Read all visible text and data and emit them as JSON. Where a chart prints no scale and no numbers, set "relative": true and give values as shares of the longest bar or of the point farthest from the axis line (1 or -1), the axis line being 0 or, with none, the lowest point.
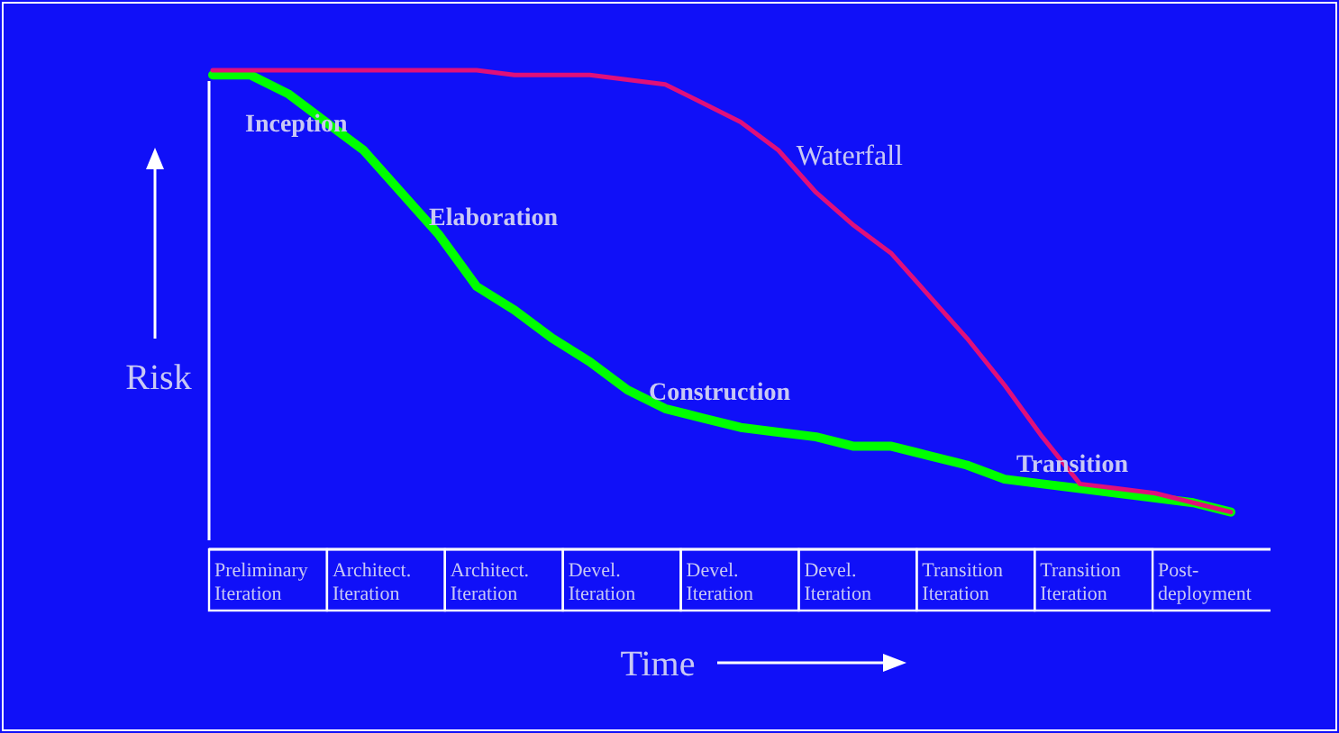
{
  "chart_data": {
    "type": "line",
    "relative": true,
    "xlabel": "Time",
    "ylabel": "Risk",
    "categories": [
      null,
      null,
      null,
      null,
      null,
      null,
      null,
      null,
      null,
      null,
      null,
      null,
      null,
      null,
      null,
      null,
      null,
      null,
      null,
      null,
      null,
      null,
      null,
      null,
      null,
      null,
      null,
      null
    ],
    "marker": "none",
    "line_style": "solid",
    "series": [
      {
        "color": "#00ff00",
        "values": [
          0.99,
          0.99,
          0.95,
          0.89,
          0.83,
          0.74,
          0.65,
          0.54,
          0.49,
          0.43,
          0.38,
          0.32,
          0.28,
          0.26,
          0.24,
          0.23,
          0.22,
          0.2,
          0.2,
          0.18,
          0.16,
          0.13,
          0.12,
          0.11,
          0.1,
          0.09,
          0.08,
          0.06
        ]
      },
      {
        "name": "Waterfall",
        "color": "#e0107a",
        "values": [
          1.0,
          1.0,
          1.0,
          1.0,
          1.0,
          1.0,
          1.0,
          1.0,
          0.99,
          0.99,
          0.99,
          0.98,
          0.97,
          0.93,
          0.89,
          0.83,
          0.74,
          0.67,
          0.61,
          0.52,
          0.43,
          0.33,
          0.22,
          0.12,
          0.11,
          0.1,
          0.08,
          0.06
        ]
      }
    ],
    "annotations": [
      "Inception",
      "Elaboration",
      "Construction",
      "Transition",
      "Preliminary Iteration",
      "Architect. Iteration",
      "Architect. Iteration",
      "Devel. Iteration",
      "Devel. Iteration",
      "Devel. Iteration",
      "Transition Iteration",
      "Transition Iteration",
      "Post-deployment"
    ]
  }
}
